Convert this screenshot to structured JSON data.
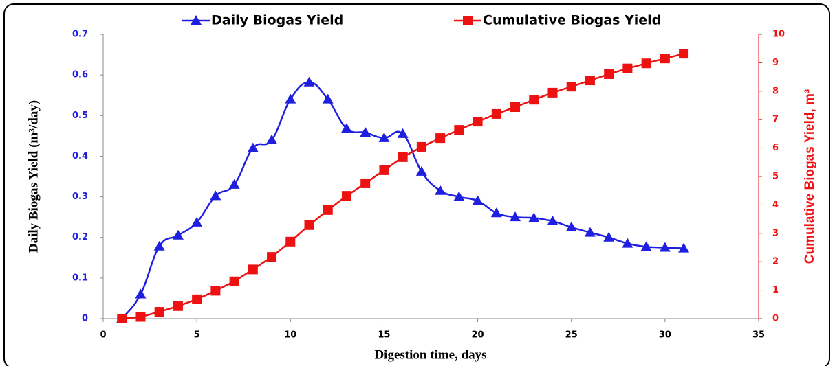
{
  "chart_data": {
    "type": "line",
    "x_label": "Digestion time, days",
    "y_label": "Daily Biogas Yield (m³/day)",
    "y2_label": "Cumulative Biogas Yield, m³",
    "x": [
      1,
      2,
      3,
      4,
      5,
      6,
      7,
      8,
      9,
      10,
      11,
      12,
      13,
      14,
      15,
      16,
      17,
      18,
      19,
      20,
      21,
      22,
      23,
      24,
      25,
      26,
      27,
      28,
      29,
      30,
      31
    ],
    "series": [
      {
        "name": "Daily Biogas Yield",
        "color": "#1f1fe0",
        "marker": "triangle",
        "values": [
          0,
          0.06,
          0.178,
          0.205,
          0.237,
          0.302,
          0.33,
          0.42,
          0.44,
          0.54,
          0.582,
          0.54,
          0.468,
          0.458,
          0.445,
          0.455,
          0.362,
          0.315,
          0.3,
          0.29,
          0.26,
          0.25,
          0.248,
          0.24,
          0.225,
          0.212,
          0.2,
          0.185,
          0.177,
          0.175,
          0.173
        ]
      },
      {
        "name": "Cumulative Biogas Yield",
        "color": "#ee1111",
        "marker": "square",
        "axis": "y2",
        "values": [
          0,
          0.06,
          0.24,
          0.44,
          0.68,
          0.98,
          1.31,
          1.73,
          2.17,
          2.71,
          3.29,
          3.82,
          4.32,
          4.76,
          5.22,
          5.68,
          6.04,
          6.35,
          6.64,
          6.93,
          7.2,
          7.44,
          7.7,
          7.95,
          8.16,
          8.38,
          8.6,
          8.8,
          8.98,
          9.15,
          9.32
        ]
      }
    ],
    "xlim": [
      0,
      35
    ],
    "xticks": [
      0,
      5,
      10,
      15,
      20,
      25,
      30,
      35
    ],
    "ylim": [
      0,
      0.7
    ],
    "yticks": [
      0,
      0.1,
      0.2,
      0.3,
      0.4,
      0.5,
      0.6,
      0.7
    ],
    "y2lim": [
      0,
      10
    ],
    "y2ticks": [
      0,
      1,
      2,
      3,
      4,
      5,
      6,
      7,
      8,
      9,
      10
    ]
  }
}
